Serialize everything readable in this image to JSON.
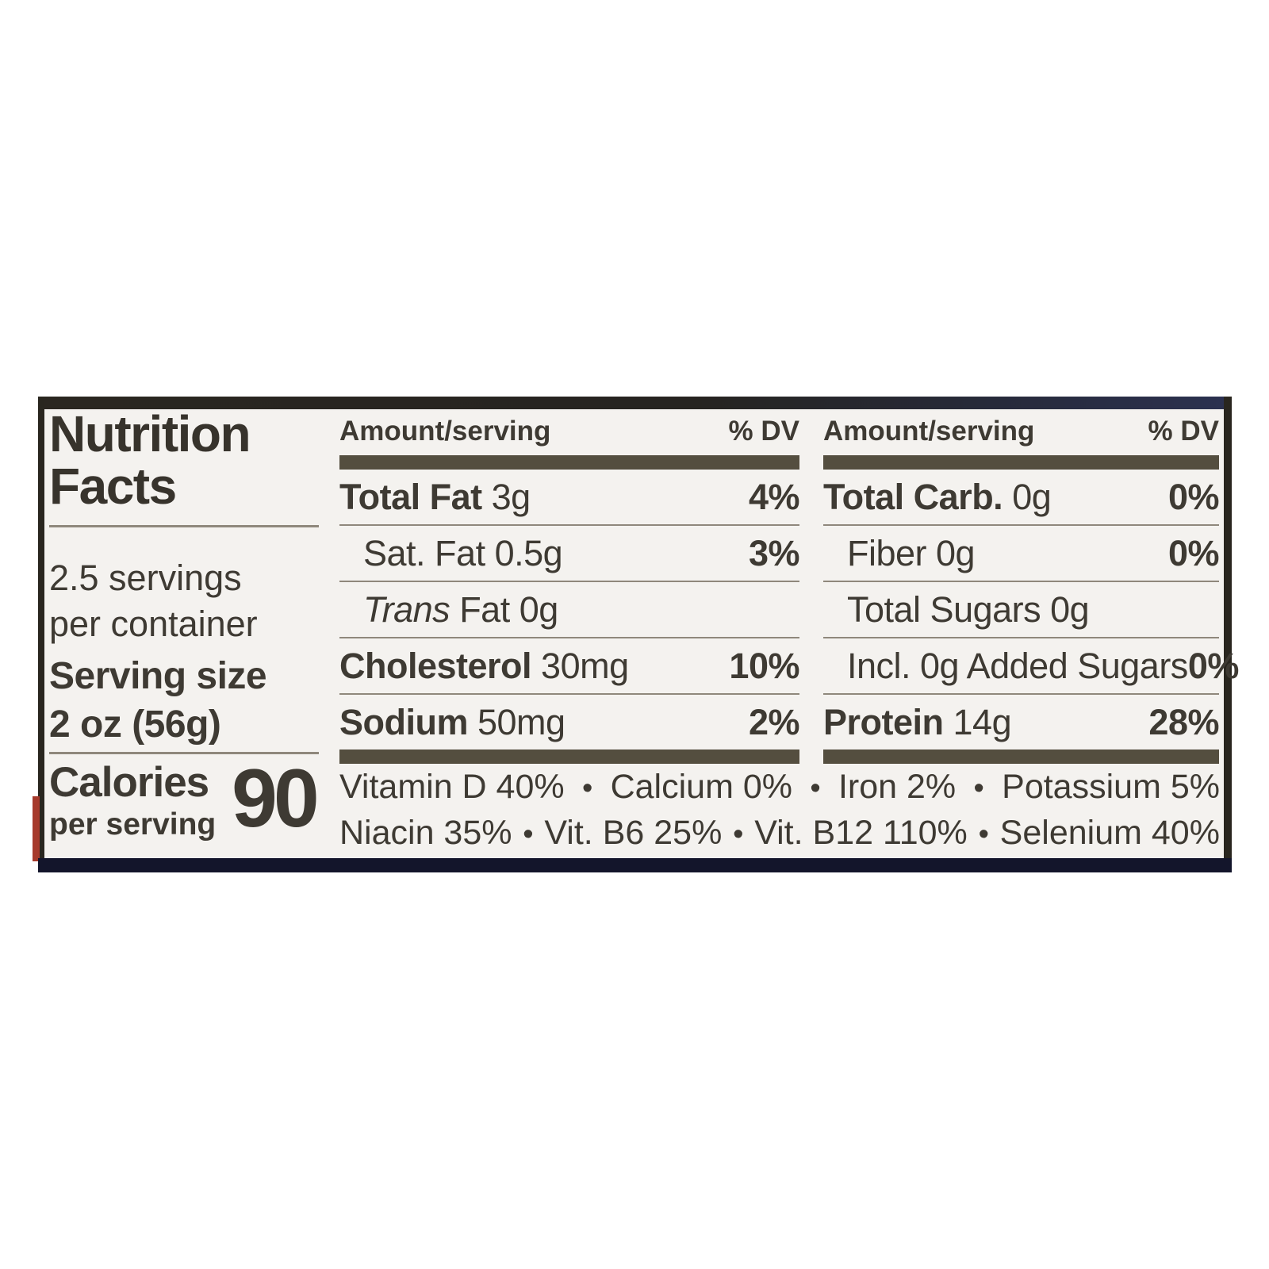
{
  "label": {
    "title_line1": "Nutrition",
    "title_line2": "Facts",
    "servings_line1": "2.5 servings",
    "servings_line2": "per container",
    "serving_size_label": "Serving size",
    "serving_size_value": "2 oz (56g)",
    "calories_label": "Calories",
    "calories_sub": "per serving",
    "calories_value": "90",
    "header": {
      "amount": "Amount/serving",
      "dv": "% DV"
    },
    "col1": {
      "rows": [
        {
          "bold": "Total Fat",
          "italic": "",
          "rest": " 3g",
          "dv": "4%"
        },
        {
          "bold": "",
          "italic": "",
          "rest": "Sat. Fat 0.5g",
          "dv": "3%"
        },
        {
          "bold": "",
          "italic": "Trans",
          "rest": " Fat 0g",
          "dv": ""
        },
        {
          "bold": "Cholesterol",
          "italic": "",
          "rest": " 30mg",
          "dv": "10%"
        },
        {
          "bold": "Sodium",
          "italic": "",
          "rest": " 50mg",
          "dv": "2%"
        }
      ]
    },
    "col2": {
      "rows": [
        {
          "bold": "Total Carb.",
          "italic": "",
          "rest": " 0g",
          "dv": "0%"
        },
        {
          "bold": "",
          "italic": "",
          "rest": "Fiber 0g",
          "dv": "0%"
        },
        {
          "bold": "",
          "italic": "",
          "rest": "Total Sugars 0g",
          "dv": ""
        },
        {
          "bold": "",
          "italic": "",
          "rest": "Incl. 0g Added Sugars",
          "dv": "0%"
        },
        {
          "bold": "Protein",
          "italic": "",
          "rest": " 14g",
          "dv": "28%"
        }
      ]
    },
    "micronutrients": {
      "bullet": "•",
      "line1": [
        "Vitamin D 40%",
        "Calcium 0%",
        "Iron 2%",
        "Potassium 5%"
      ],
      "line2": [
        "Niacin 35%",
        "Vit. B6 25%",
        "Vit. B12 110%",
        "Selenium 40%"
      ]
    },
    "colors": {
      "label_background": "#f4f2ef",
      "text": "#3e3a33",
      "divider_bar": "#544e3f",
      "thin_rule": "#8f887c",
      "border": "#29261f",
      "bottom_strip_navy": "#13152b",
      "red_edge_accent": "#a63a2c"
    }
  }
}
